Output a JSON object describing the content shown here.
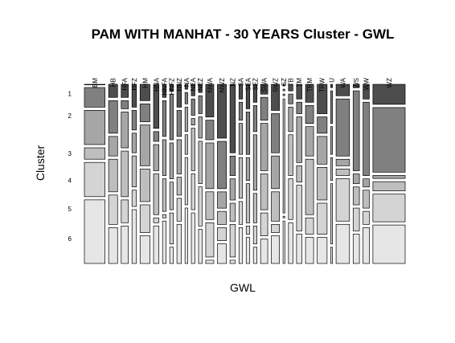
{
  "chart_data": {
    "type": "mosaic",
    "title": "PAM WITH MANHAT - 30 YEARS Cluster - GWL",
    "xlabel": "GWL",
    "ylabel": "Cluster",
    "clusters": [
      "1",
      "2",
      "3",
      "4",
      "5",
      "6"
    ],
    "cluster_colors": [
      "#4d4d4d",
      "#808080",
      "#a6a6a6",
      "#bebebe",
      "#d4d4d4",
      "#e6e6e6"
    ],
    "categories": [
      {
        "name": "BM",
        "weight": 23,
        "values": [
          0,
          12,
          21,
          7,
          21,
          39
        ]
      },
      {
        "name": "HB",
        "weight": 10,
        "values": [
          8,
          20,
          12,
          20,
          18,
          22
        ]
      },
      {
        "name": "HFA",
        "weight": 8,
        "values": [
          8,
          5,
          22,
          28,
          14,
          23
        ]
      },
      {
        "name": "HFZ",
        "weight": 5,
        "values": [
          14,
          12,
          12,
          19,
          10,
          33
        ]
      },
      {
        "name": "HM",
        "weight": 11,
        "values": [
          10,
          11,
          25,
          20,
          17,
          17
        ]
      },
      {
        "name": "HNA",
        "weight": 6,
        "values": [
          27,
          6,
          16,
          25,
          3,
          23
        ]
      },
      {
        "name": "HNFA",
        "weight": 4,
        "values": [
          8,
          22,
          22,
          20,
          2,
          26
        ]
      },
      {
        "name": "HNFZ",
        "weight": 4,
        "values": [
          4,
          28,
          22,
          17,
          19,
          10
        ]
      },
      {
        "name": "HNZ",
        "weight": 5,
        "values": [
          14,
          16,
          21,
          11,
          14,
          24
        ]
      },
      {
        "name": "NA",
        "weight": 3,
        "values": [
          3,
          7,
          15,
          12,
          29,
          34
        ]
      },
      {
        "name": "NEA",
        "weight": 4,
        "values": [
          7,
          10,
          4,
          26,
          22,
          31
        ]
      },
      {
        "name": "NEZ",
        "weight": 4,
        "values": [
          5,
          11,
          13,
          26,
          24,
          21
        ]
      },
      {
        "name": "NWA",
        "weight": 9,
        "values": [
          20,
          12,
          28,
          17,
          21,
          2
        ]
      },
      {
        "name": "NWZ",
        "weight": 10,
        "values": [
          33,
          29,
          10,
          8,
          8,
          12
        ]
      },
      {
        "name": "NZ",
        "weight": 6,
        "values": [
          42,
          12,
          13,
          11,
          20,
          2
        ]
      },
      {
        "name": "SA",
        "weight": 4,
        "values": [
          9,
          11,
          19,
          25,
          14,
          22
        ]
      },
      {
        "name": "SEA",
        "weight": 4,
        "values": [
          15,
          26,
          14,
          24,
          5,
          16
        ]
      },
      {
        "name": "SEZ",
        "weight": 4,
        "values": [
          11,
          16,
          34,
          18,
          11,
          10
        ]
      },
      {
        "name": "SWA",
        "weight": 8,
        "values": [
          6,
          14,
          29,
          22,
          14,
          15
        ]
      },
      {
        "name": "SWZ",
        "weight": 9,
        "values": [
          16,
          24,
          20,
          18,
          5,
          17
        ]
      },
      {
        "name": "SZ",
        "weight": 2,
        "values": [
          1,
          1,
          1,
          70,
          1,
          26
        ]
      },
      {
        "name": "TB",
        "weight": 5,
        "values": [
          4,
          6,
          15,
          25,
          25,
          25
        ]
      },
      {
        "name": "TM",
        "weight": 6,
        "values": [
          9,
          7,
          28,
          10,
          28,
          18
        ]
      },
      {
        "name": "TRM",
        "weight": 9,
        "values": [
          11,
          11,
          18,
          34,
          10,
          16
        ]
      },
      {
        "name": "TRW",
        "weight": 11,
        "values": [
          18,
          10,
          17,
          20,
          19,
          16
        ]
      },
      {
        "name": "U",
        "weight": 2,
        "values": [
          2,
          20,
          17,
          14,
          37,
          10
        ]
      },
      {
        "name": "WA",
        "weight": 15,
        "values": [
          7,
          35,
          4,
          4,
          26,
          24
        ]
      },
      {
        "name": "WS",
        "weight": 7,
        "values": [
          2,
          49,
          6,
          11,
          14,
          18
        ]
      },
      {
        "name": "WW",
        "weight": 7,
        "values": [
          9,
          45,
          5,
          11,
          8,
          22
        ]
      },
      {
        "name": "WZ",
        "weight": 36,
        "values": [
          13,
          42,
          2,
          6,
          18,
          25
        ]
      }
    ],
    "spacing": "gaps between segments; zero-count cells shown as thin lines",
    "grid": false,
    "legend": "none"
  }
}
